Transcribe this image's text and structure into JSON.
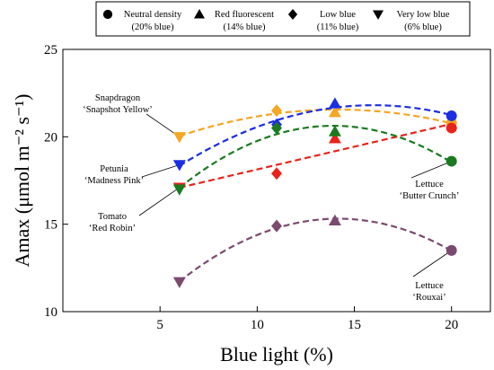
{
  "chart_data": {
    "type": "scatter",
    "xlabel": "Blue light (%)",
    "ylabel": "Amax (μmol m⁻² s⁻¹)",
    "xlim": [
      0,
      22
    ],
    "ylim": [
      10,
      25
    ],
    "xticks": [
      5,
      10,
      15,
      20
    ],
    "yticks": [
      10,
      15,
      20,
      25
    ],
    "grid": false,
    "legend_placement": "top",
    "legend": [
      {
        "marker": "circle",
        "line1": "Neutral density",
        "line2": "(20% blue)"
      },
      {
        "marker": "triangle-up",
        "line1": "Red fluorescent",
        "line2": "(14% blue)"
      },
      {
        "marker": "diamond",
        "line1": "Low blue",
        "line2": "(11% blue)"
      },
      {
        "marker": "triangle-down",
        "line1": "Very low blue",
        "line2": "(6% blue)"
      }
    ],
    "series": [
      {
        "name": "Snapdragon ‘Snapshot Yellow’",
        "label_lines": [
          "Snapdragon",
          "‘Snapshot Yellow’"
        ],
        "color": "#f5a623",
        "fit": "quadratic",
        "points": [
          {
            "x": 6,
            "y": 20.0,
            "marker": "triangle-down"
          },
          {
            "x": 11,
            "y": 21.5,
            "marker": "diamond"
          },
          {
            "x": 14,
            "y": 21.4,
            "marker": "triangle-up"
          },
          {
            "x": 20,
            "y": 20.8,
            "marker": "circle"
          }
        ]
      },
      {
        "name": "Petunia ‘Madness Pink’",
        "label_lines": [
          "Petunia",
          "‘Madness Pink’"
        ],
        "color": "#1a2fe0",
        "fit": "quadratic",
        "points": [
          {
            "x": 6,
            "y": 18.4,
            "marker": "triangle-down"
          },
          {
            "x": 11,
            "y": 20.7,
            "marker": "diamond"
          },
          {
            "x": 14,
            "y": 21.9,
            "marker": "triangle-up"
          },
          {
            "x": 20,
            "y": 21.2,
            "marker": "circle"
          }
        ]
      },
      {
        "name": "Tomato ‘Red Robin’",
        "label_lines": [
          "Tomato",
          "‘Red Robin’"
        ],
        "color": "#e8231b",
        "fit": "linear",
        "points": [
          {
            "x": 6,
            "y": 17.1,
            "marker": "triangle-down"
          },
          {
            "x": 11,
            "y": 17.9,
            "marker": "diamond"
          },
          {
            "x": 14,
            "y": 19.9,
            "marker": "triangle-up"
          },
          {
            "x": 20,
            "y": 20.5,
            "marker": "circle"
          }
        ]
      },
      {
        "name": "Lettuce ‘Butter Crunch’",
        "label_lines": [
          "Lettuce",
          "‘Butter Crunch’"
        ],
        "color": "#1b7a1f",
        "fit": "quadratic",
        "points": [
          {
            "x": 6,
            "y": 17.0,
            "marker": "triangle-down"
          },
          {
            "x": 11,
            "y": 20.5,
            "marker": "diamond"
          },
          {
            "x": 14,
            "y": 20.3,
            "marker": "triangle-up"
          },
          {
            "x": 20,
            "y": 18.6,
            "marker": "circle"
          }
        ]
      },
      {
        "name": "Lettuce ‘Rouxai’",
        "label_lines": [
          "Lettuce",
          "‘Rouxai’"
        ],
        "color": "#7d4a6f",
        "fit": "quadratic",
        "points": [
          {
            "x": 6,
            "y": 11.7,
            "marker": "triangle-down"
          },
          {
            "x": 11,
            "y": 14.9,
            "marker": "diamond"
          },
          {
            "x": 14,
            "y": 15.2,
            "marker": "triangle-up"
          },
          {
            "x": 20,
            "y": 13.5,
            "marker": "circle"
          }
        ]
      }
    ]
  }
}
